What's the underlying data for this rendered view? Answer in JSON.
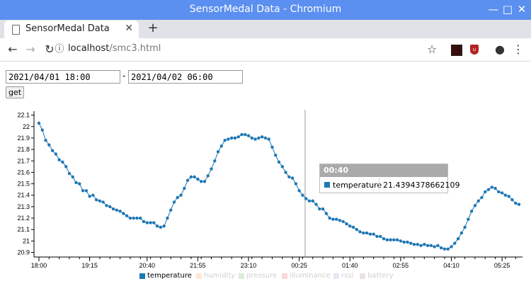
{
  "window": {
    "title": "SensorMedal Data - Chromium",
    "tab_label": "SensorMedal Data",
    "new_tab": "+",
    "url_host": "localhost",
    "url_path": "/smc3.html"
  },
  "form": {
    "start": "2021/04/01 18:00",
    "separator": "-",
    "end": "2021/04/02 06:00",
    "get_label": "get"
  },
  "tooltip": {
    "time": "00:40",
    "series": "temperature",
    "value": "21.4394378662109"
  },
  "legend": [
    {
      "label": "temperature",
      "color": "#1f77b4",
      "active": true
    },
    {
      "label": "humidity",
      "color": "#ff7f0e",
      "active": false
    },
    {
      "label": "pressure",
      "color": "#2ca02c",
      "active": false
    },
    {
      "label": "illuminance",
      "color": "#d62728",
      "active": false
    },
    {
      "label": "rssi",
      "color": "#9467bd",
      "active": false
    },
    {
      "label": "battery",
      "color": "#8c564b",
      "active": false
    }
  ],
  "chart_data": {
    "type": "line",
    "series": [
      {
        "name": "temperature",
        "values": [
          22.03,
          21.97,
          21.88,
          21.84,
          21.79,
          21.76,
          21.71,
          21.69,
          21.65,
          21.59,
          21.56,
          21.51,
          21.5,
          21.44,
          21.44,
          21.39,
          21.4,
          21.36,
          21.35,
          21.34,
          21.31,
          21.3,
          21.28,
          21.27,
          21.26,
          21.24,
          21.22,
          21.2,
          21.2,
          21.2,
          21.2,
          21.17,
          21.16,
          21.16,
          21.16,
          21.13,
          21.12,
          21.13,
          21.2,
          21.27,
          21.34,
          21.38,
          21.4,
          21.46,
          21.53,
          21.56,
          21.56,
          21.54,
          21.52,
          21.52,
          21.57,
          21.63,
          21.7,
          21.78,
          21.83,
          21.88,
          21.89,
          21.9,
          21.9,
          21.91,
          21.93,
          21.93,
          21.92,
          21.9,
          21.89,
          21.9,
          21.91,
          21.9,
          21.89,
          21.82,
          21.75,
          21.69,
          21.65,
          21.6,
          21.56,
          21.55,
          21.5,
          21.44,
          21.4,
          21.37,
          21.35,
          21.35,
          21.32,
          21.28,
          21.28,
          21.24,
          21.2,
          21.19,
          21.19,
          21.18,
          21.17,
          21.15,
          21.13,
          21.12,
          21.1,
          21.08,
          21.07,
          21.07,
          21.06,
          21.06,
          21.04,
          21.04,
          21.02,
          21.01,
          21.01,
          21.01,
          21.01,
          21.0,
          20.99,
          20.99,
          20.98,
          20.97,
          20.97,
          20.96,
          20.97,
          20.96,
          20.96,
          20.95,
          20.96,
          20.94,
          20.93,
          20.93,
          20.95,
          20.98,
          21.02,
          21.07,
          21.12,
          21.19,
          21.26,
          21.31,
          21.35,
          21.38,
          21.43,
          21.45,
          21.47,
          21.46,
          21.43,
          21.42,
          21.4,
          21.39,
          21.36,
          21.33,
          21.32
        ]
      }
    ],
    "x_ticks": [
      "18:00",
      "19:15",
      "20:40",
      "21:55",
      "23:10",
      "00:25",
      "01:40",
      "02:55",
      "04:10",
      "05:25"
    ],
    "y_ticks": [
      "20.9",
      "21",
      "21.1",
      "21.2",
      "21.3",
      "21.4",
      "21.5",
      "21.6",
      "21.7",
      "21.8",
      "21.9",
      "22",
      "22.1"
    ],
    "ylim": [
      20.86,
      22.11
    ],
    "hover_time": "00:40",
    "x_range_minutes": [
      0,
      710
    ],
    "series_color": "#1f77b4"
  }
}
